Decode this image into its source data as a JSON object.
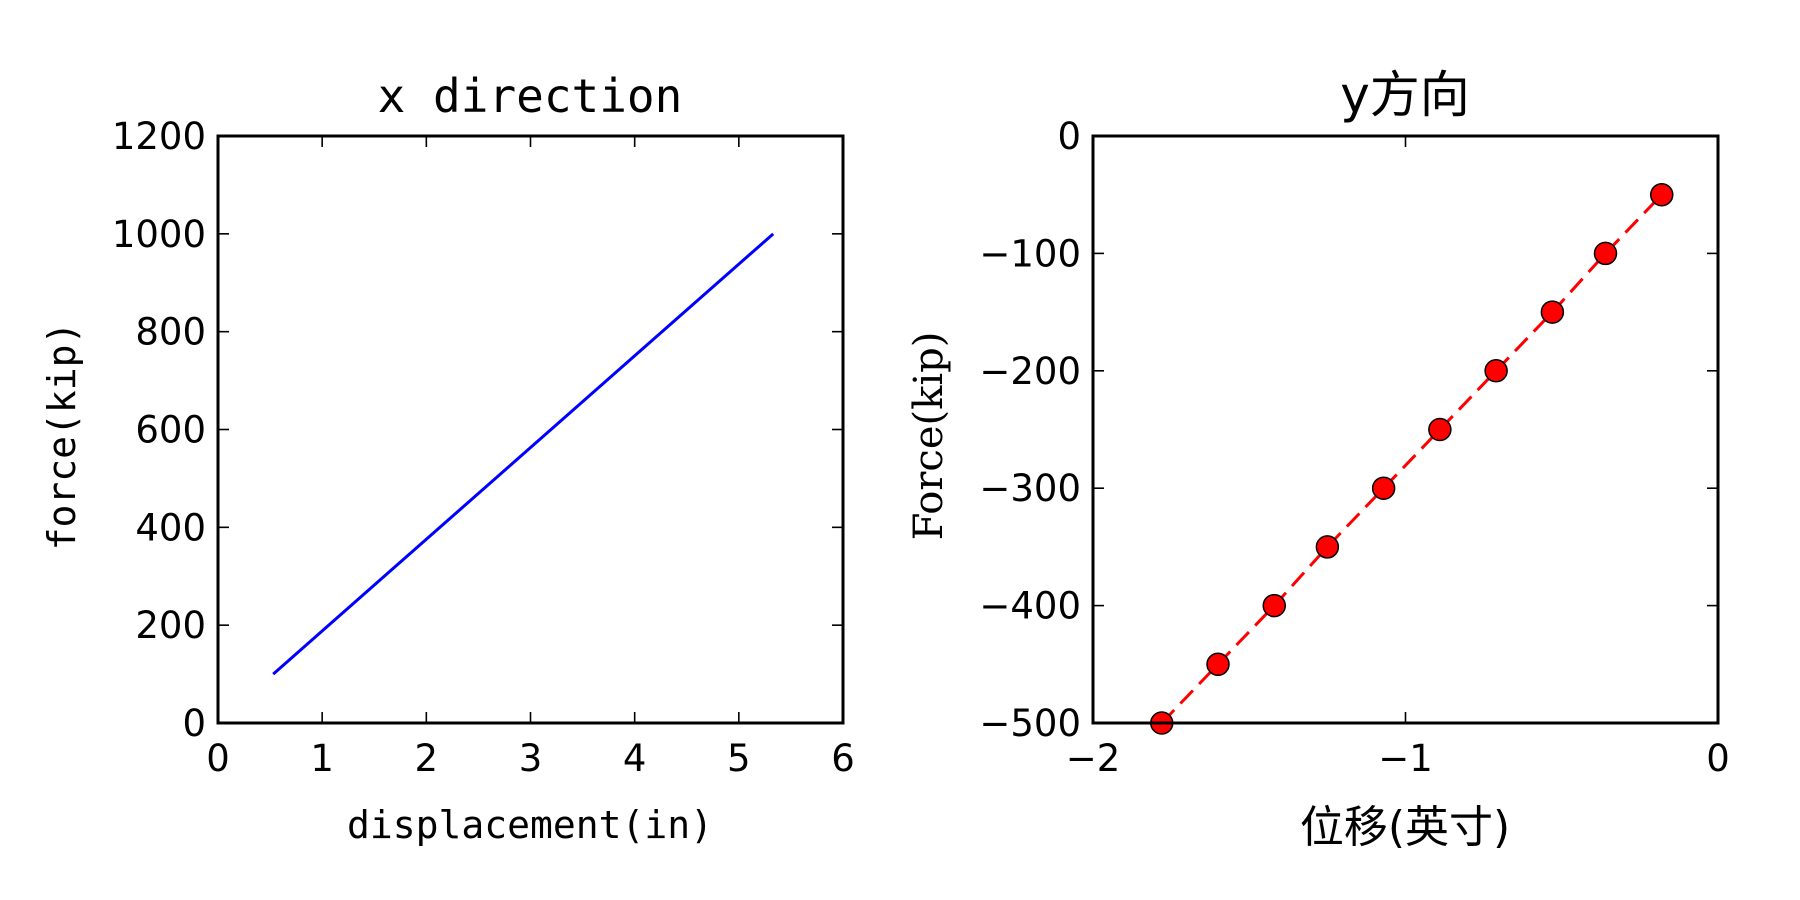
{
  "chart_data": [
    {
      "type": "line",
      "title": "x direction",
      "xlabel": "displacement(in)",
      "ylabel": "force(kip)",
      "xlim": [
        0,
        6
      ],
      "ylim": [
        0,
        1200
      ],
      "xticks": [
        "0",
        "1",
        "2",
        "3",
        "4",
        "5",
        "6"
      ],
      "yticks": [
        "0",
        "200",
        "400",
        "600",
        "800",
        "1000",
        "1200"
      ],
      "series": [
        {
          "color": "#0000ff",
          "style": "solid",
          "x": [
            0.53,
            5.33
          ],
          "y": [
            100,
            1000
          ]
        }
      ],
      "grid": false
    },
    {
      "type": "line",
      "title": "y方向",
      "xlabel": "位移(英寸)",
      "ylabel": "Force(kip)",
      "xlim": [
        -2,
        0
      ],
      "ylim": [
        -500,
        0
      ],
      "xticks": [
        "−2",
        "−1",
        "0"
      ],
      "yticks": [
        "−500",
        "−400",
        "−300",
        "−200",
        "−100",
        "0"
      ],
      "series": [
        {
          "color": "#ff0000",
          "style": "dashed",
          "marker": "circle",
          "x": [
            -1.78,
            -1.6,
            -1.42,
            -1.25,
            -1.07,
            -0.89,
            -0.71,
            -0.53,
            -0.36,
            -0.18
          ],
          "y": [
            -500,
            -450,
            -400,
            -350,
            -300,
            -250,
            -200,
            -150,
            -100,
            -50
          ]
        }
      ],
      "grid": false
    }
  ]
}
